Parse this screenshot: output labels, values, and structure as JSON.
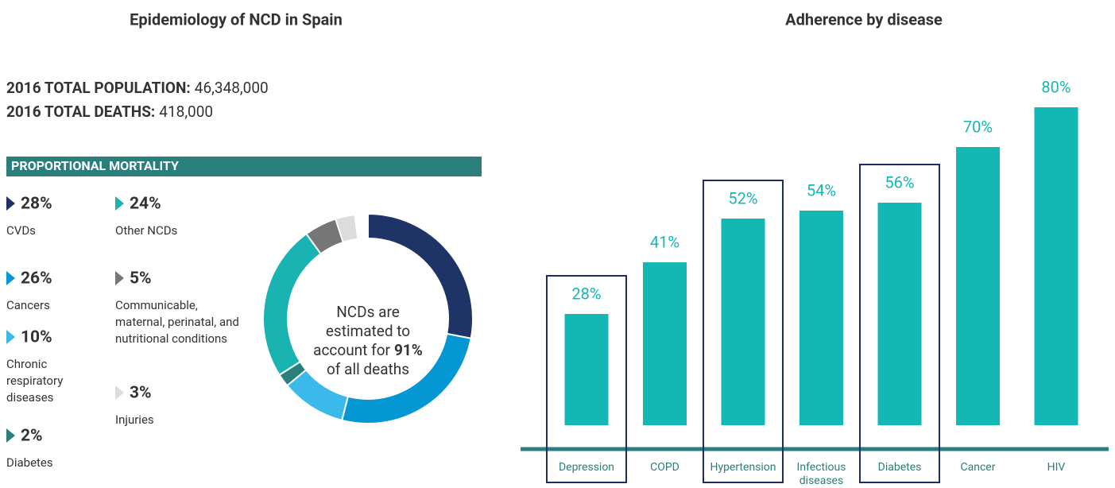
{
  "chart_data": [
    {
      "type": "pie",
      "title": "Epidemiology of NCD in Spain",
      "stats": [
        {
          "label": "2016 TOTAL POPULATION:",
          "value": "46,348,000"
        },
        {
          "label": "2016 TOTAL DEATHS:",
          "value": "418,000"
        }
      ],
      "section_title": "PROPORTIONAL MORTALITY",
      "categories": [
        "CVDs",
        "Cancers",
        "Chronic respiratory diseases",
        "Diabetes",
        "Other NCDs",
        "Communicable, maternal, perinatal, and nutritional conditions",
        "Injuries"
      ],
      "values": [
        28,
        26,
        10,
        2,
        24,
        5,
        3
      ],
      "value_labels": [
        "28%",
        "26%",
        "10%",
        "2%",
        "24%",
        "5%",
        "3%"
      ],
      "colors": [
        "#1f3466",
        "#0596d4",
        "#3bb9ea",
        "#2a7f7d",
        "#19b3b1",
        "#767676",
        "#dcdcdc"
      ],
      "center_text": [
        "NCDs are",
        "estimated to",
        "account for",
        "91%",
        "of all deaths"
      ]
    },
    {
      "type": "bar",
      "title": "Adherence by disease",
      "categories": [
        "Depression",
        "COPD",
        "Hypertension",
        "Infectious diseases",
        "Diabetes",
        "Cancer",
        "HIV"
      ],
      "values": [
        28,
        41,
        52,
        54,
        56,
        70,
        80
      ],
      "value_labels": [
        "28%",
        "41%",
        "52%",
        "54%",
        "56%",
        "70%",
        "80%"
      ],
      "color": "#13b8b5",
      "highlight": [
        true,
        false,
        true,
        false,
        true,
        false,
        false
      ]
    }
  ]
}
